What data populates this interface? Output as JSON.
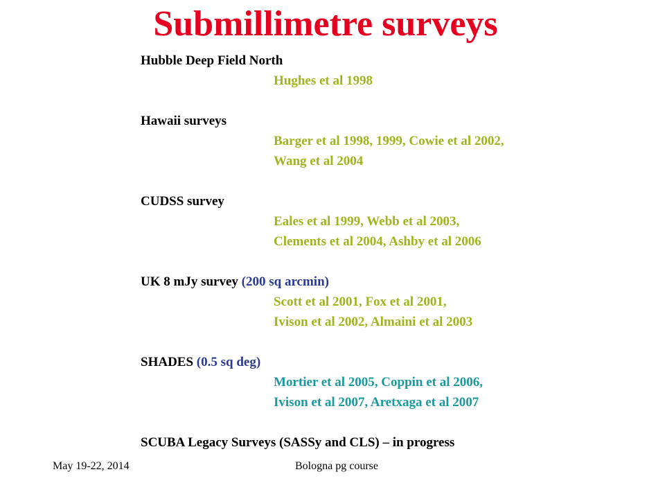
{
  "title": "Submillimetre surveys",
  "colors": {
    "title": "#e5001f",
    "references": "#a0b41e",
    "shades_references": "#1a9a9a",
    "notes": "#2b3a8f"
  },
  "sections": [
    {
      "heading": "Hubble Deep Field North",
      "note": "",
      "refs": [
        "Hughes et al 1998"
      ]
    },
    {
      "heading": "Hawaii surveys",
      "note": "",
      "refs": [
        "Barger et al 1998, 1999, Cowie et al 2002,",
        "Wang et al 2004"
      ]
    },
    {
      "heading": "CUDSS survey",
      "note": "",
      "refs": [
        "Eales et al 1999, Webb et al 2003,",
        "Clements et al 2004, Ashby et al 2006"
      ]
    },
    {
      "heading": "UK 8 mJy survey",
      "note": "(200 sq arcmin)",
      "refs": [
        "Scott et al 2001, Fox et al 2001,",
        "Ivison et al 2002, Almaini et al 2003"
      ]
    },
    {
      "heading": "SHADES",
      "note": "(0.5 sq deg)",
      "refs": [
        "Mortier et al 2005, Coppin et al 2006,",
        "Ivison et al 2007, Aretxaga et al 2007"
      ]
    },
    {
      "heading": "SCUBA Legacy Surveys (SASSy and CLS) – in progress",
      "note": "",
      "refs": []
    }
  ],
  "footer": {
    "date": "May 19-22, 2014",
    "course": "Bologna pg course"
  }
}
